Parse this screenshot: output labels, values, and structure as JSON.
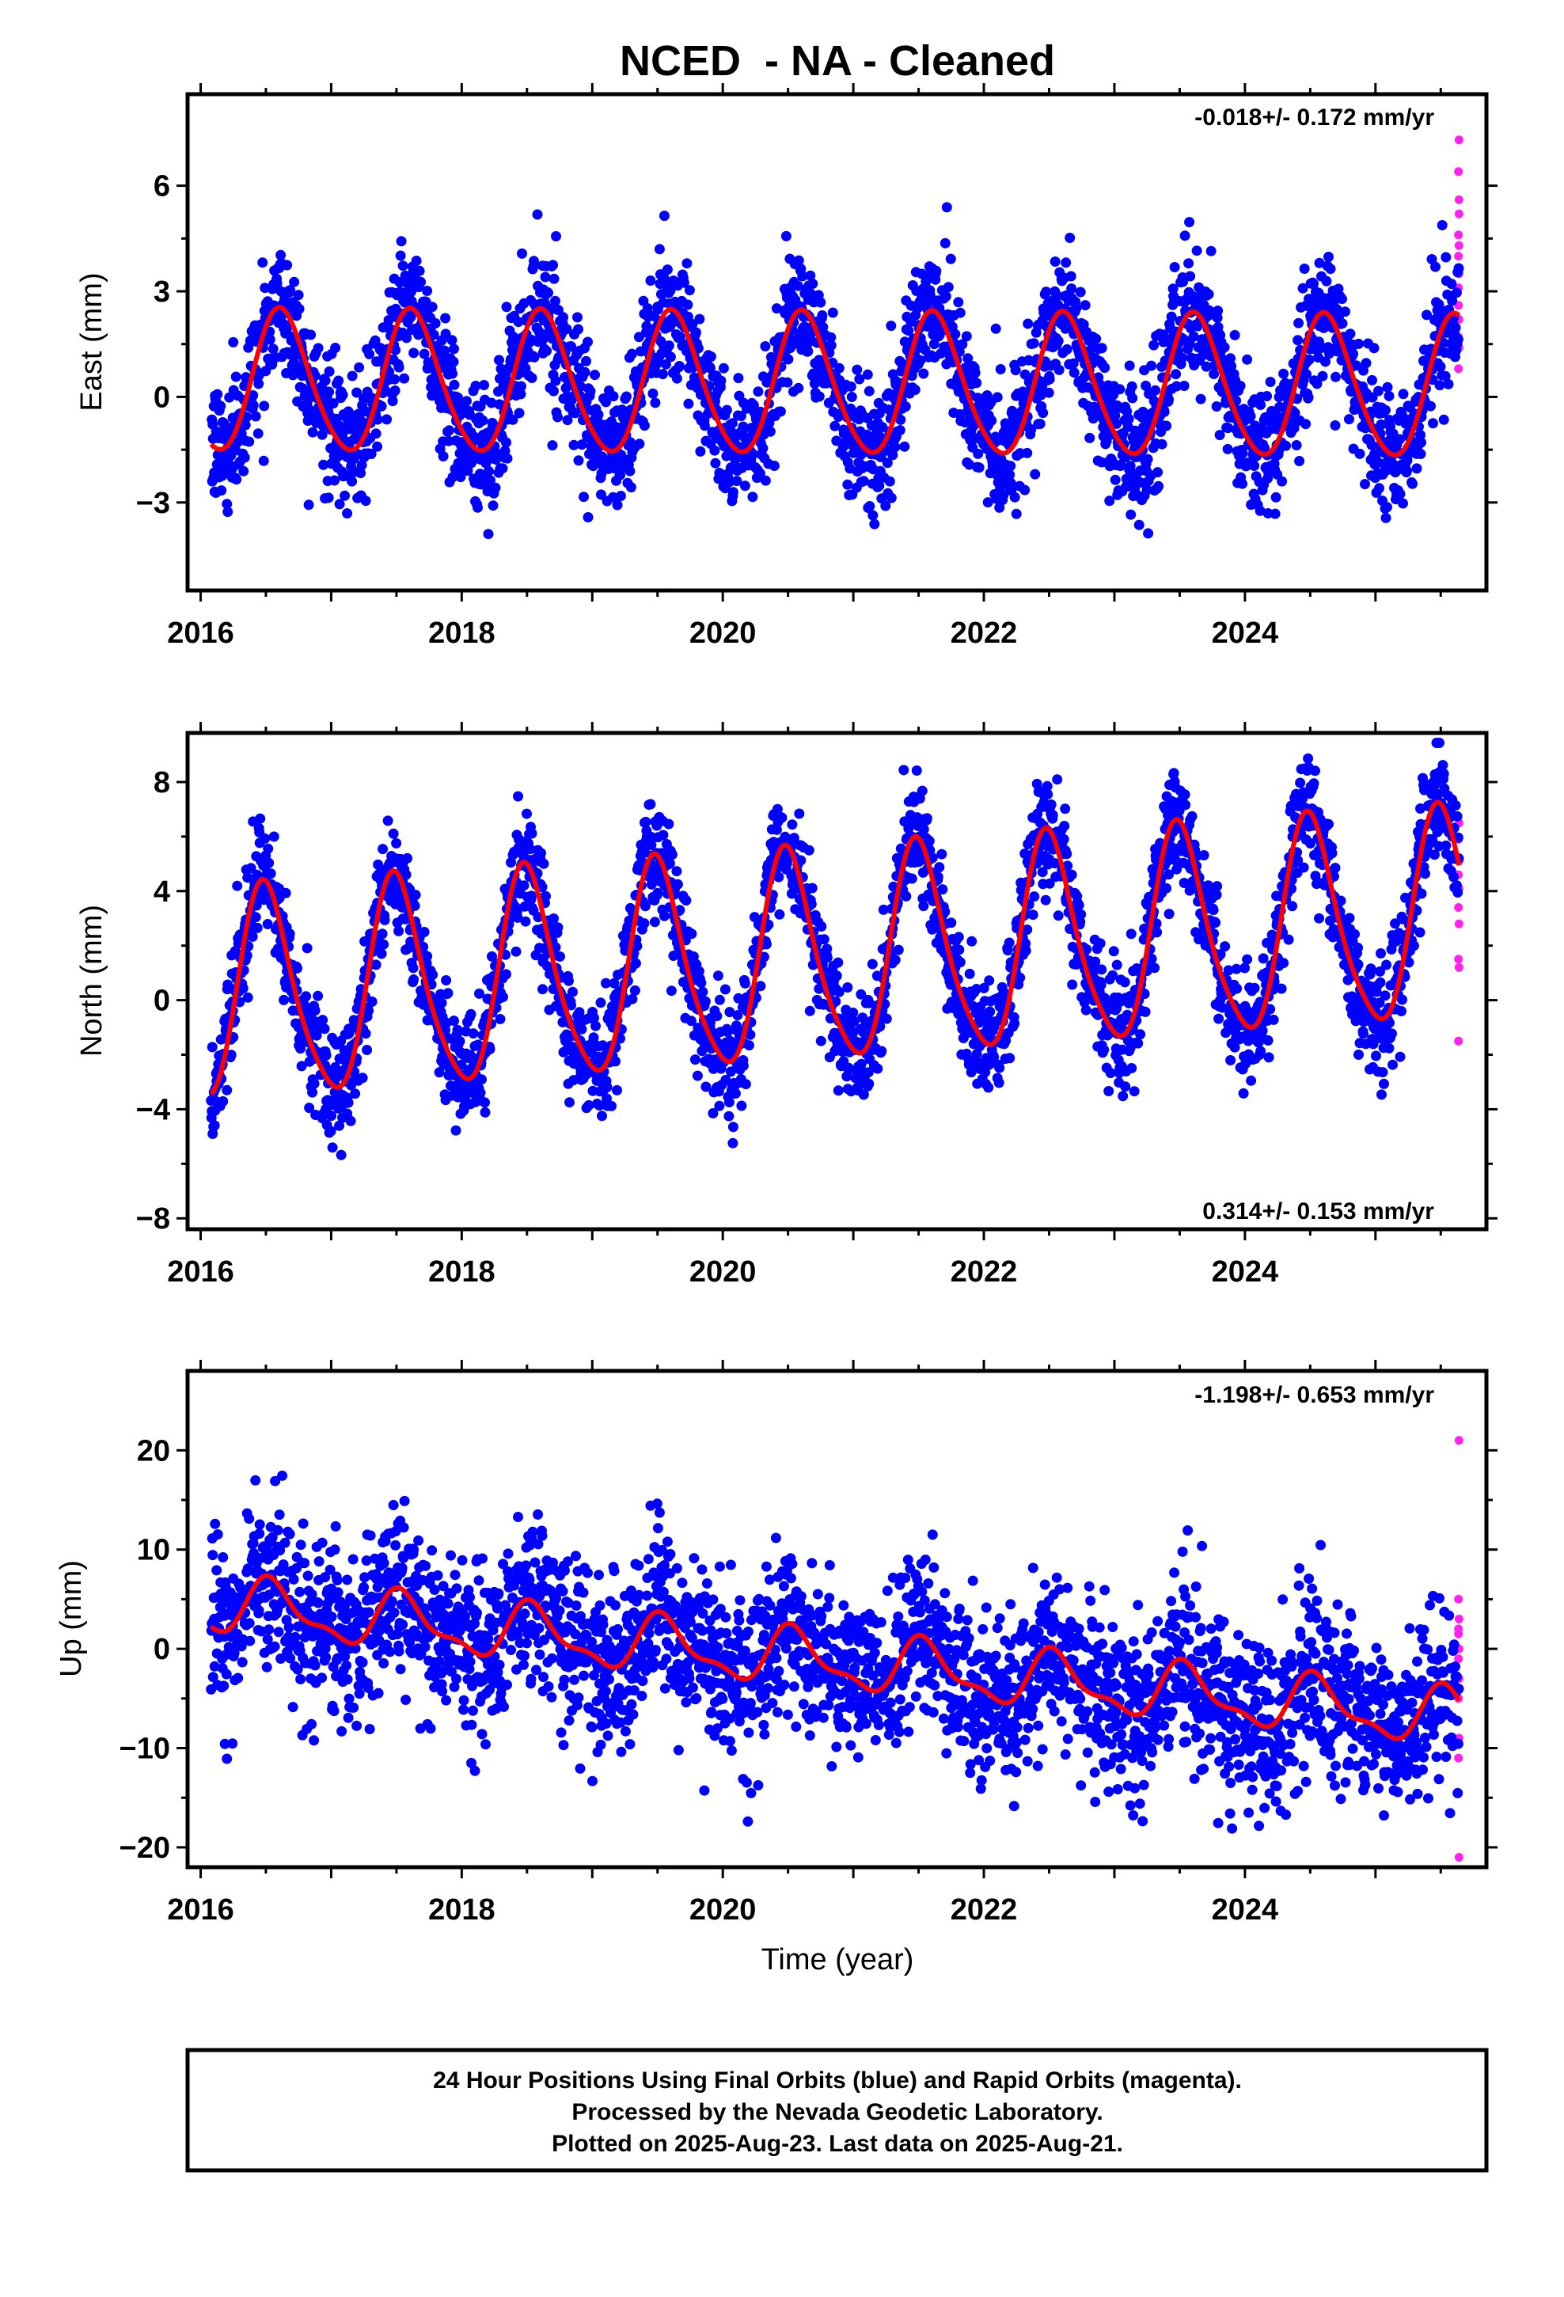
{
  "figure": {
    "title": "NCED  - NA - Cleaned",
    "xlabel": "Time (year)",
    "caption": [
      "24 Hour Positions Using Final Orbits (blue) and Rapid Orbits (magenta).",
      "Processed by the Nevada Geodetic Laboratory.",
      "Plotted on 2025-Aug-23. Last data on 2025-Aug-21."
    ],
    "colors": {
      "final": "#0000ff",
      "rapid": "#ff22ee",
      "model": "#ff0000"
    }
  },
  "chart_data": [
    {
      "type": "scatter",
      "ylabel": "East (mm)",
      "rate_label": "-0.018+/- 0.172 mm/yr",
      "xlim": [
        2015.9,
        2025.85
      ],
      "ylim": [
        -5.5,
        8.6
      ],
      "x_ticks": [
        2016,
        2018,
        2020,
        2022,
        2024
      ],
      "y_ticks": [
        -3,
        0,
        3,
        6
      ],
      "model": {
        "mean": 0.4,
        "annual_amplitude": 2.0,
        "peak_phase_year": 0.62,
        "slope_mm_per_yr": -0.018,
        "semiannual_amplitude": 0.2,
        "noise_sd_mm": 0.9
      },
      "final_range": [
        2016.08,
        2025.5
      ],
      "rapid_range": [
        2025.5,
        2025.64
      ],
      "rapid_values": [
        7.3,
        6.4,
        5.6,
        4.6,
        4.3,
        4.0,
        3.5,
        2.6,
        2.2,
        1.7,
        1.4,
        0.8,
        5.2,
        3.1
      ]
    },
    {
      "type": "scatter",
      "ylabel": "North (mm)",
      "rate_label": "0.314+/- 0.153 mm/yr",
      "xlim": [
        2015.9,
        2025.85
      ],
      "ylim": [
        -8.4,
        9.8
      ],
      "x_ticks": [
        2016,
        2018,
        2020,
        2022,
        2024
      ],
      "y_ticks": [
        -8,
        -4,
        0,
        4,
        8
      ],
      "model": {
        "mean": 0.0,
        "annual_amplitude": 3.8,
        "peak_phase_year": 0.5,
        "slope_mm_per_yr": 0.314,
        "semiannual_amplitude": 0.6,
        "noise_sd_mm": 1.0
      },
      "final_range": [
        2016.08,
        2025.5
      ],
      "rapid_range": [
        2025.5,
        2025.64
      ],
      "rapid_values": [
        6.5,
        5.9,
        5.1,
        4.6,
        4.1,
        3.4,
        2.8,
        1.5,
        1.2,
        -1.5
      ]
    },
    {
      "type": "scatter",
      "ylabel": "Up (mm)",
      "rate_label": "-1.198+/- 0.653 mm/yr",
      "xlim": [
        2015.9,
        2025.85
      ],
      "ylim": [
        -22.0,
        28.0
      ],
      "x_ticks": [
        2016,
        2018,
        2020,
        2022,
        2024
      ],
      "y_ticks": [
        -20,
        -10,
        0,
        10,
        20
      ],
      "model": {
        "mean": 4.5,
        "annual_amplitude": 2.6,
        "peak_phase_year": 0.55,
        "slope_mm_per_yr": -1.198,
        "semiannual_amplitude": 1.0,
        "noise_sd_mm": 4.2
      },
      "final_range": [
        2016.08,
        2025.5
      ],
      "rapid_range": [
        2025.5,
        2025.64
      ],
      "rapid_values": [
        21.0,
        5.0,
        3.0,
        2.0,
        0.0,
        -1.0,
        -3.0,
        -5.0,
        -9.0,
        -11.0,
        -21.0,
        1.5
      ]
    }
  ]
}
